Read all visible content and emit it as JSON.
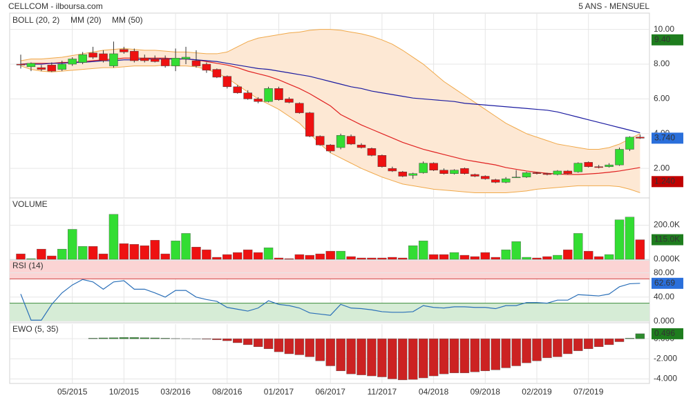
{
  "header": {
    "title": "CELLCOM - ilboursa.com",
    "period": "5 ANS - MENSUEL"
  },
  "chart_data": [
    {
      "type": "candlestick",
      "categories": [
        null,
        null,
        null,
        null,
        null,
        "05/2015",
        null,
        null,
        null,
        null,
        "10/2015",
        null,
        null,
        null,
        null,
        "03/2016",
        null,
        null,
        null,
        null,
        "08/2016",
        null,
        null,
        null,
        null,
        "01/2017",
        null,
        null,
        null,
        null,
        "06/2017",
        null,
        null,
        null,
        null,
        "11/2017",
        null,
        null,
        null,
        null,
        "04/2018",
        null,
        null,
        null,
        null,
        "09/2018",
        null,
        null,
        null,
        null,
        "02/2019",
        null,
        null,
        null,
        null,
        "07/2019",
        null,
        null,
        null,
        null,
        null
      ],
      "open": [
        8.0,
        7.85,
        7.8,
        7.95,
        7.7,
        8.0,
        8.1,
        8.65,
        8.6,
        7.9,
        8.85,
        8.75,
        8.35,
        8.3,
        8.3,
        7.9,
        8.3,
        8.2,
        8.0,
        7.7,
        7.3,
        6.7,
        6.35,
        6.0,
        5.85,
        6.6,
        6.0,
        5.75,
        5.2,
        3.85,
        3.35,
        3.2,
        3.85,
        3.35,
        3.15,
        2.75,
        2.0,
        1.8,
        1.6,
        1.75,
        2.3,
        1.9,
        1.7,
        2.0,
        1.65,
        1.55,
        1.35,
        1.2,
        1.5,
        1.5,
        1.75,
        1.7,
        1.65,
        1.85,
        1.8,
        2.35,
        2.1,
        2.1,
        2.2,
        3.1,
        3.8
      ],
      "high": [
        8.55,
        8.1,
        7.95,
        8.1,
        8.2,
        8.4,
        8.7,
        9.0,
        8.8,
        9.3,
        9.0,
        8.9,
        8.55,
        8.5,
        8.5,
        8.9,
        9.0,
        8.8,
        8.1,
        7.75,
        7.35,
        6.8,
        6.5,
        6.1,
        6.7,
        6.7,
        6.1,
        5.8,
        5.25,
        3.9,
        3.4,
        4.0,
        3.95,
        3.45,
        3.2,
        2.8,
        2.1,
        1.85,
        1.75,
        2.4,
        2.35,
        2.0,
        1.95,
        2.05,
        1.7,
        1.6,
        1.4,
        1.5,
        1.9,
        1.8,
        1.8,
        1.75,
        1.9,
        1.9,
        2.35,
        2.4,
        2.2,
        2.3,
        3.2,
        3.85,
        3.95
      ],
      "low": [
        7.75,
        7.6,
        7.6,
        7.55,
        7.6,
        7.9,
        8.0,
        8.3,
        8.1,
        7.8,
        8.6,
        8.1,
        8.1,
        8.1,
        7.8,
        7.6,
        8.0,
        7.8,
        7.5,
        7.2,
        6.6,
        6.3,
        5.95,
        5.75,
        5.8,
        5.9,
        5.75,
        5.15,
        3.8,
        3.3,
        2.9,
        3.1,
        3.35,
        3.15,
        2.7,
        2.05,
        1.8,
        1.5,
        1.4,
        1.7,
        1.85,
        1.65,
        1.65,
        1.65,
        1.5,
        1.35,
        1.15,
        1.15,
        1.45,
        1.45,
        1.65,
        1.6,
        1.6,
        1.65,
        1.75,
        2.05,
        2.0,
        2.05,
        2.15,
        3.0,
        3.7
      ],
      "close": [
        7.95,
        8.05,
        7.7,
        7.6,
        8.0,
        8.3,
        8.55,
        8.4,
        8.2,
        8.6,
        8.7,
        8.2,
        8.2,
        8.15,
        7.9,
        8.35,
        8.4,
        7.9,
        7.65,
        7.25,
        6.7,
        6.35,
        6.0,
        5.85,
        6.6,
        5.95,
        5.8,
        5.2,
        3.85,
        3.35,
        3.0,
        3.9,
        3.4,
        3.2,
        2.75,
        2.1,
        1.85,
        1.55,
        1.7,
        2.3,
        1.9,
        1.7,
        1.9,
        1.7,
        1.55,
        1.4,
        1.2,
        1.4,
        1.5,
        1.75,
        1.7,
        1.65,
        1.85,
        1.7,
        2.3,
        2.1,
        2.05,
        2.2,
        3.1,
        3.8,
        3.74
      ],
      "up_color": "#33dd33",
      "down_color": "#ee1111",
      "series": [
        {
          "name": "BOLL (20, 2)",
          "color": "#f0a848",
          "fill": "#fde8d4",
          "upper": [
            8.2,
            8.3,
            8.3,
            8.35,
            8.4,
            8.5,
            8.6,
            8.7,
            8.8,
            8.85,
            8.9,
            8.85,
            8.8,
            8.8,
            8.75,
            8.7,
            8.7,
            8.65,
            8.6,
            8.6,
            8.7,
            9.0,
            9.3,
            9.5,
            9.6,
            9.7,
            9.8,
            9.85,
            9.95,
            10.0,
            10.0,
            9.95,
            9.85,
            9.75,
            9.6,
            9.4,
            9.15,
            8.8,
            8.4,
            8.0,
            7.5,
            7.0,
            6.6,
            6.2,
            5.8,
            5.4,
            5.0,
            4.6,
            4.3,
            4.0,
            3.8,
            3.6,
            3.4,
            3.3,
            3.2,
            3.1,
            3.1,
            3.2,
            3.4,
            3.7,
            4.0
          ],
          "lower": [
            7.9,
            7.7,
            7.6,
            7.55,
            7.6,
            7.65,
            7.7,
            7.75,
            7.8,
            7.8,
            7.85,
            7.9,
            7.9,
            7.9,
            7.95,
            7.9,
            7.9,
            7.85,
            7.7,
            7.5,
            7.2,
            6.8,
            6.4,
            6.0,
            5.7,
            5.4,
            5.0,
            4.6,
            4.0,
            3.4,
            2.9,
            2.6,
            2.3,
            2.0,
            1.75,
            1.5,
            1.3,
            1.1,
            1.0,
            0.9,
            0.8,
            0.75,
            0.7,
            0.65,
            0.6,
            0.6,
            0.6,
            0.6,
            0.65,
            0.7,
            0.8,
            0.85,
            0.9,
            0.95,
            1.0,
            1.0,
            1.0,
            1.0,
            0.95,
            0.8,
            0.6
          ]
        },
        {
          "name": "MM (20)",
          "color": "#e02020",
          "values": [
            8.0,
            8.05,
            8.05,
            8.05,
            8.1,
            8.1,
            8.15,
            8.2,
            8.25,
            8.3,
            8.35,
            8.35,
            8.35,
            8.35,
            8.35,
            8.3,
            8.3,
            8.25,
            8.15,
            8.05,
            7.95,
            7.8,
            7.6,
            7.45,
            7.3,
            7.1,
            6.85,
            6.6,
            6.3,
            5.95,
            5.6,
            5.1,
            4.8,
            4.5,
            4.25,
            4.0,
            3.75,
            3.5,
            3.3,
            3.1,
            2.95,
            2.8,
            2.65,
            2.5,
            2.4,
            2.3,
            2.2,
            2.05,
            1.95,
            1.85,
            1.78,
            1.72,
            1.68,
            1.65,
            1.65,
            1.68,
            1.72,
            1.78,
            1.85,
            1.95,
            2.05
          ]
        },
        {
          "name": "MM (50)",
          "color": "#1a1aa0",
          "values": [
            8.0,
            8.0,
            8.0,
            8.05,
            8.05,
            8.1,
            8.1,
            8.15,
            8.2,
            8.2,
            8.25,
            8.25,
            8.3,
            8.3,
            8.3,
            8.3,
            8.3,
            8.25,
            8.2,
            8.15,
            8.05,
            7.95,
            7.85,
            7.75,
            7.7,
            7.6,
            7.5,
            7.4,
            7.3,
            7.15,
            7.0,
            6.85,
            6.7,
            6.6,
            6.45,
            6.35,
            6.25,
            6.15,
            6.05,
            6.0,
            5.95,
            5.9,
            5.85,
            5.75,
            5.7,
            5.65,
            5.6,
            5.55,
            5.5,
            5.45,
            5.4,
            5.35,
            5.25,
            5.1,
            4.95,
            4.8,
            4.65,
            4.5,
            4.35,
            4.2,
            4.05
          ]
        }
      ],
      "ylim": [
        0.34,
        10.9
      ],
      "yticks": [
        {
          "value": 2,
          "label": "2.00"
        },
        {
          "value": 4,
          "label": "4.00"
        },
        {
          "value": 6,
          "label": "6.00"
        },
        {
          "value": 8,
          "label": "8.00"
        },
        {
          "value": 10,
          "label": "10.00"
        }
      ],
      "badges": [
        {
          "value": 9.4,
          "label": "9.40",
          "color": "#1e7d1e"
        },
        {
          "value": 3.74,
          "label": "3.740",
          "color": "#2a6fdb"
        },
        {
          "value": 1.24,
          "label": "1.240",
          "color": "#c00000"
        }
      ],
      "grid": true
    },
    {
      "type": "bar",
      "title": "VOLUME",
      "title_color": "#2a9a2a",
      "values": [
        32000,
        4000,
        60000,
        20000,
        60000,
        176000,
        76000,
        76000,
        32000,
        264000,
        92000,
        88000,
        80000,
        112000,
        32000,
        108000,
        152000,
        72000,
        56000,
        12000,
        28000,
        40000,
        56000,
        40000,
        68000,
        8000,
        4000,
        28000,
        24000,
        32000,
        48000,
        48000,
        16000,
        8000,
        8000,
        8000,
        12000,
        8000,
        80000,
        108000,
        28000,
        28000,
        40000,
        24000,
        16000,
        40000,
        12000,
        56000,
        104000,
        12000,
        8000,
        16000,
        24000,
        56000,
        152000,
        48000,
        16000,
        28000,
        232000,
        248000,
        115000
      ],
      "ylim": [
        0,
        352000
      ],
      "yticks": [
        {
          "value": 0,
          "label": "0.000K"
        },
        {
          "value": 200000,
          "label": "200.0K"
        }
      ],
      "badges": [
        {
          "value": 115000,
          "label": "115.0K",
          "color": "#1e7d1e"
        }
      ],
      "grid": true
    },
    {
      "type": "line",
      "title": "RSI (14)",
      "title_color": "#2255aa",
      "color": "#2a6fb8",
      "values": [
        45,
        2,
        2,
        28,
        47,
        60,
        69,
        65,
        53,
        65,
        67,
        53,
        53,
        47,
        40,
        51,
        51,
        40,
        36,
        33,
        23,
        20,
        17,
        22,
        34,
        28,
        26,
        22,
        14,
        12,
        10,
        28,
        22,
        21,
        19,
        16,
        15,
        15,
        16,
        26,
        23,
        22,
        24,
        24,
        23,
        23,
        21,
        26,
        26,
        31,
        31,
        30,
        35,
        35,
        44,
        43,
        42,
        45,
        57,
        62,
        62.69
      ],
      "ylim": [
        0,
        100
      ],
      "yticks": [
        {
          "value": 0,
          "label": "0.000"
        },
        {
          "value": 40,
          "label": "40.00"
        },
        {
          "value": 80,
          "label": "80.00"
        }
      ],
      "bands": [
        {
          "from": 70,
          "to": 100,
          "color": "#fbd4d4",
          "edge": "#d04040"
        },
        {
          "from": 0,
          "to": 30,
          "color": "#d6ecd6",
          "edge": "#3a8a3a"
        }
      ],
      "badges": [
        {
          "value": 62.69,
          "label": "62.69",
          "color": "#2a6fdb"
        }
      ],
      "grid": true
    },
    {
      "type": "bar",
      "title": "EWO (5, 35)",
      "title_color": "#2a9a2a",
      "values": [
        null,
        null,
        null,
        null,
        null,
        null,
        null,
        0.05,
        0.08,
        0.1,
        0.12,
        0.12,
        0.1,
        0.08,
        0.05,
        0.02,
        0.01,
        -0.02,
        -0.05,
        -0.1,
        -0.2,
        -0.4,
        -0.6,
        -0.8,
        -1.0,
        -1.3,
        -1.5,
        -1.6,
        -1.8,
        -2.2,
        -2.7,
        -3.2,
        -3.5,
        -3.6,
        -3.7,
        -3.8,
        -4.0,
        -4.1,
        -4.05,
        -3.9,
        -3.7,
        -3.5,
        -3.4,
        -3.4,
        -3.3,
        -3.2,
        -3.1,
        -2.9,
        -2.7,
        -2.4,
        -2.2,
        -1.9,
        -1.8,
        -1.5,
        -1.2,
        -1.0,
        -0.8,
        -0.6,
        -0.3,
        0.05,
        0.496
      ],
      "pos_color": "#2e8b2e",
      "neg_color": "#cc2222",
      "ylim": [
        -4.45,
        1.45
      ],
      "yticks": [
        {
          "value": 0,
          "label": "0.000"
        },
        {
          "value": -2,
          "label": "-2.000"
        },
        {
          "value": -4,
          "label": "-4.000"
        }
      ],
      "badges": [
        {
          "value": 0.496,
          "label": "0.496",
          "color": "#1e7d1e"
        }
      ],
      "grid": true
    }
  ]
}
